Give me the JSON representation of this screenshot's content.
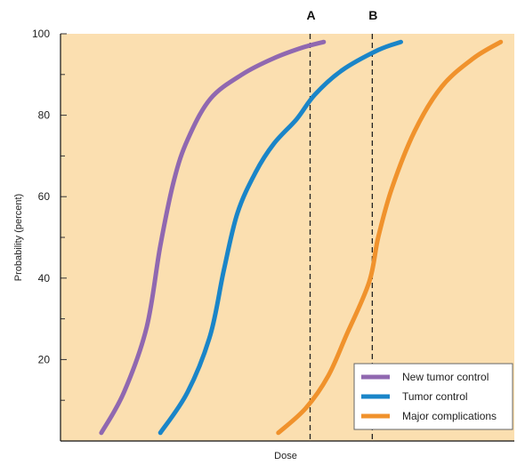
{
  "chart_data": {
    "type": "line",
    "xlabel": "Dose",
    "ylabel": "Probability (percent)",
    "ylim": [
      0,
      100
    ],
    "yticks": [
      20,
      40,
      60,
      80,
      100
    ],
    "ticks_minor": [
      10,
      30,
      50,
      70,
      90
    ],
    "x_tick_labels_shown": false,
    "grid": false,
    "legend_position": "bottom-right",
    "plot_background": "#fbdfb0",
    "markers": [
      {
        "label": "A",
        "x": 0.55
      },
      {
        "label": "B",
        "x": 0.687
      }
    ],
    "series": [
      {
        "name": "New tumor control",
        "color": "#9068b0",
        "x": [
          0.09,
          0.14,
          0.19,
          0.22,
          0.25,
          0.28,
          0.33,
          0.4,
          0.47,
          0.53,
          0.58
        ],
        "values": [
          2,
          12,
          28,
          48,
          64,
          74,
          84,
          90,
          94,
          96.5,
          98
        ]
      },
      {
        "name": "Tumor control",
        "color": "#1a85c8",
        "x": [
          0.22,
          0.28,
          0.33,
          0.36,
          0.39,
          0.43,
          0.47,
          0.52,
          0.56,
          0.62,
          0.7,
          0.75
        ],
        "values": [
          2,
          12,
          26,
          42,
          56,
          66,
          73,
          79,
          85,
          91,
          96,
          98
        ]
      },
      {
        "name": "Major complications",
        "color": "#f0922c",
        "x": [
          0.48,
          0.54,
          0.59,
          0.63,
          0.68,
          0.7,
          0.73,
          0.78,
          0.84,
          0.91,
          0.97
        ],
        "values": [
          2,
          8,
          16,
          26,
          39,
          50,
          62,
          76,
          87,
          94,
          98
        ]
      }
    ]
  }
}
